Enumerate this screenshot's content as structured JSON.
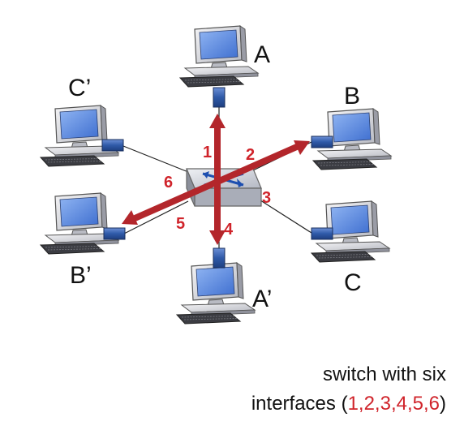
{
  "hosts": {
    "A": "A",
    "B": "B",
    "C": "C",
    "A_prime": "A’",
    "B_prime": "B’",
    "C_prime": "C’"
  },
  "ports": [
    "1",
    "2",
    "3",
    "4",
    "5",
    "6"
  ],
  "caption": {
    "line1": "switch with six",
    "line2_prefix": "interfaces (",
    "line2_ports": "1,2,3,4,5,6",
    "line2_suffix": ")"
  },
  "colors": {
    "arrow": "#b3262b",
    "port_label": "#d0242b",
    "switch_body": "#c9ccd4",
    "connector": "#2f5aa8"
  },
  "icons": {
    "host": "desktop-computer-icon",
    "switch": "network-switch-icon",
    "connector": "port-connector-icon"
  }
}
